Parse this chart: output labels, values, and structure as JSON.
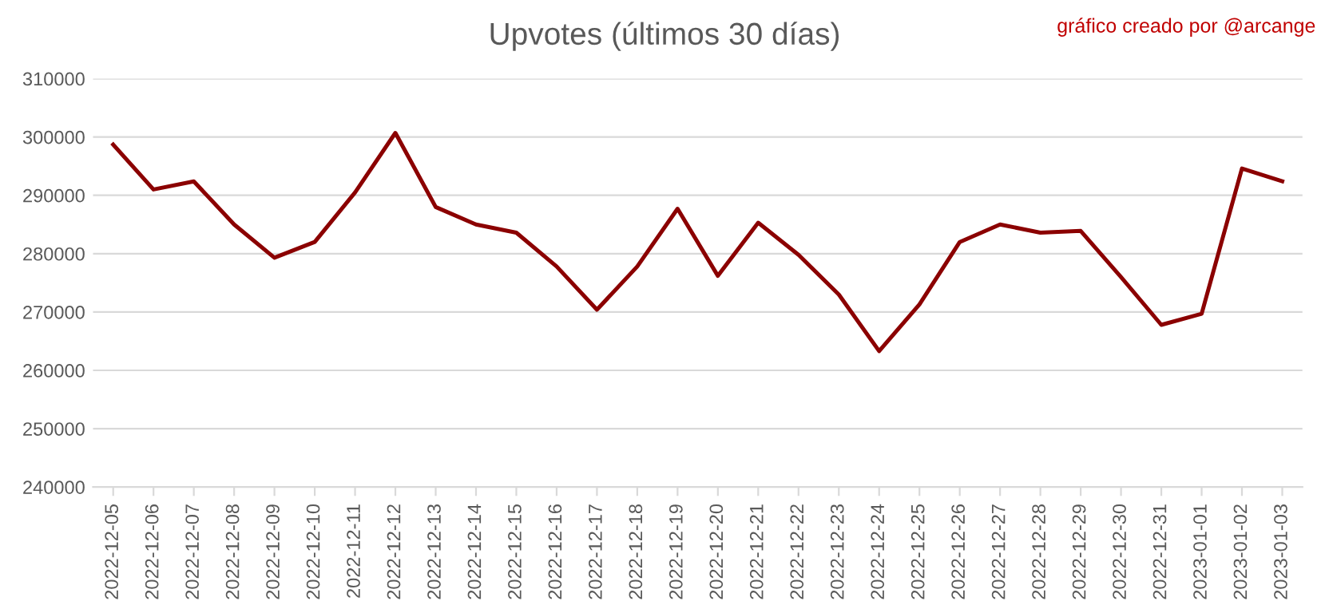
{
  "chart_data": {
    "type": "line",
    "title": "Upvotes (últimos 30 días)",
    "annotations": [
      "gráfico creado por @arcange"
    ],
    "categories": [
      "2022-12-05",
      "2022-12-06",
      "2022-12-07",
      "2022-12-08",
      "2022-12-09",
      "2022-12-10",
      "2022-12-11",
      "2022-12-12",
      "2022-12-13",
      "2022-12-14",
      "2022-12-15",
      "2022-12-16",
      "2022-12-17",
      "2022-12-18",
      "2022-12-19",
      "2022-12-20",
      "2022-12-21",
      "2022-12-22",
      "2022-12-23",
      "2022-12-24",
      "2022-12-25",
      "2022-12-26",
      "2022-12-27",
      "2022-12-28",
      "2022-12-29",
      "2022-12-30",
      "2022-12-31",
      "2023-01-01",
      "2023-01-02",
      "2023-01-03"
    ],
    "series": [
      {
        "color": "#8b0000",
        "values": [
          298700,
          291000,
          292400,
          285000,
          279300,
          282000,
          290500,
          300700,
          288000,
          285000,
          283600,
          277800,
          270400,
          277800,
          287700,
          276200,
          285300,
          279800,
          273000,
          263300,
          271300,
          282000,
          285000,
          283600,
          283900,
          276000,
          267800,
          269700,
          294600,
          292400
        ]
      }
    ],
    "ylim": [
      240000,
      310000
    ],
    "yticks": [
      240000,
      250000,
      260000,
      270000,
      280000,
      290000,
      300000,
      310000
    ],
    "grid": "y",
    "legend": false,
    "marker": "none",
    "line_style": "solid"
  }
}
